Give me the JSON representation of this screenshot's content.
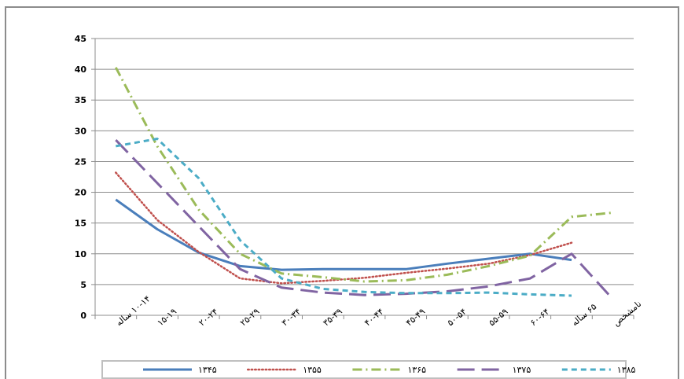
{
  "chart_data": {
    "type": "line",
    "title": "",
    "xlabel": "",
    "ylabel": "",
    "ylim": [
      0,
      45
    ],
    "yticks": [
      0,
      5,
      10,
      15,
      20,
      25,
      30,
      35,
      40,
      45
    ],
    "grid": true,
    "legend_position": "bottom",
    "categories": [
      "۱۰-۱۴ ساله",
      "۱۵-۱۹",
      "۲۰-۲۴",
      "۲۵-۲۹",
      "۳۰-۳۴",
      "۳۵-۳۹",
      "۴۰-۴۴",
      "۴۵-۴۹",
      "۵۰-۵۴",
      "۵۵-۵۹",
      "۶۰-۶۴",
      "۶۵ ساله",
      "نامشخص"
    ],
    "series": [
      {
        "name": "۱۳۴۵",
        "color": "#4a7ebb",
        "dash": "solid",
        "values": [
          18.8,
          14,
          10.2,
          8,
          7.4,
          7.5,
          7.5,
          7.5,
          8.4,
          9.2,
          10,
          9,
          null
        ]
      },
      {
        "name": "۱۳۵۵",
        "color": "#c0504d",
        "dash": "dotted",
        "values": [
          23.2,
          15.5,
          10.3,
          6,
          5.2,
          5.6,
          6.1,
          6.9,
          7.6,
          8.4,
          9.8,
          11.8,
          null
        ]
      },
      {
        "name": "۱۳۶۵",
        "color": "#9bbb59",
        "dash": "dashdot",
        "values": [
          40.3,
          27.5,
          17.2,
          10,
          6.8,
          6.2,
          5.5,
          5.7,
          6.6,
          8,
          9.7,
          16,
          16.7
        ]
      },
      {
        "name": "۱۳۷۵",
        "color": "#8064a2",
        "dash": "longdash",
        "values": [
          28.5,
          21.5,
          14.5,
          7.5,
          4.5,
          3.7,
          3.3,
          3.5,
          3.9,
          4.7,
          6,
          10,
          2.6
        ]
      },
      {
        "name": "۱۳۸۵",
        "color": "#4bacc6",
        "dash": "dash",
        "values": [
          27.5,
          28.7,
          22.3,
          12.2,
          6,
          4.3,
          3.8,
          3.6,
          3.6,
          3.7,
          3.4,
          3.2,
          null
        ]
      }
    ]
  }
}
